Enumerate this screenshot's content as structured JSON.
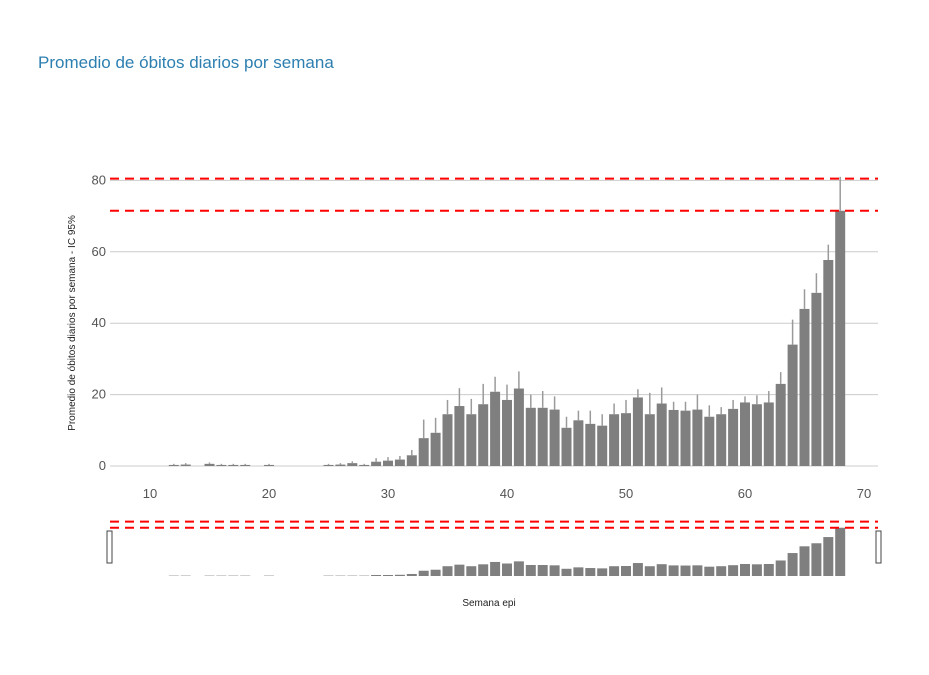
{
  "chart_data": {
    "type": "bar",
    "title": "Promedio de óbitos diarios por semana",
    "xlabel": "Semana epi",
    "ylabel": "Promedio de óbitos diarios por semana - IC 95%",
    "xlim": [
      5,
      70
    ],
    "ylim": [
      0,
      80
    ],
    "xticks": [
      10,
      20,
      30,
      40,
      50,
      60,
      70
    ],
    "yticks": [
      0,
      20,
      40,
      60,
      80
    ],
    "grid": "horizontal",
    "bar_color": "#7f7f7f",
    "error_bar_color": "#9a9a9a",
    "reference_lines": {
      "color": "#ff0000",
      "style": "dashed",
      "values": [
        71.5,
        80.5
      ]
    },
    "navigator": {
      "type": "bar",
      "range": [
        5,
        70
      ],
      "description": "range-selector mini chart with handles"
    },
    "weeks": [
      12,
      13,
      15,
      16,
      17,
      18,
      20,
      25,
      26,
      27,
      28,
      29,
      30,
      31,
      32,
      33,
      34,
      35,
      36,
      37,
      38,
      39,
      40,
      41,
      42,
      43,
      44,
      45,
      46,
      47,
      48,
      49,
      50,
      51,
      52,
      53,
      54,
      55,
      56,
      57,
      58,
      59,
      60,
      61,
      62,
      63,
      64,
      65,
      66,
      67,
      68
    ],
    "values": [
      0.3,
      0.4,
      0.6,
      0.3,
      0.3,
      0.3,
      0.3,
      0.3,
      0.4,
      0.8,
      0.3,
      1.2,
      1.5,
      1.8,
      3.0,
      7.8,
      9.3,
      14.5,
      16.8,
      14.5,
      17.3,
      20.8,
      18.5,
      21.7,
      16.3,
      16.3,
      15.8,
      10.7,
      12.8,
      11.8,
      11.3,
      14.5,
      14.8,
      19.2,
      14.5,
      17.5,
      15.7,
      15.5,
      15.8,
      13.8,
      14.5,
      16.0,
      17.8,
      17.3,
      17.8,
      23.0,
      34.0,
      44.0,
      48.5,
      57.7,
      71.5
    ],
    "ci_high": [
      0.6,
      0.8,
      1.0,
      0.6,
      0.6,
      0.6,
      0.6,
      0.6,
      0.8,
      1.3,
      0.6,
      2.2,
      2.5,
      2.8,
      4.5,
      13.0,
      13.5,
      18.5,
      21.8,
      18.8,
      23.0,
      25.0,
      22.8,
      26.5,
      20.0,
      21.0,
      19.5,
      13.8,
      15.5,
      15.5,
      14.5,
      17.5,
      18.5,
      21.5,
      20.5,
      22.0,
      18.0,
      18.0,
      20.0,
      17.0,
      16.5,
      18.5,
      19.5,
      19.8,
      21.0,
      26.3,
      41.0,
      49.5,
      54.0,
      62.0,
      81.0
    ]
  }
}
